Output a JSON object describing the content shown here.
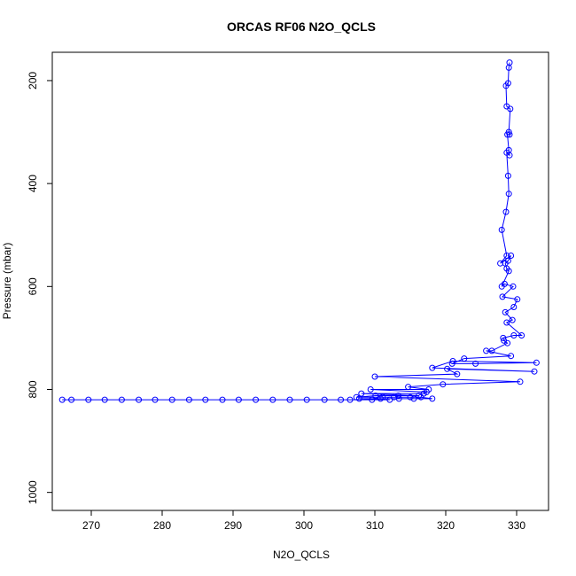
{
  "chart_data": {
    "type": "scatter",
    "title": "ORCAS RF06 N2O_QCLS",
    "xlabel": "N2O_QCLS",
    "ylabel": "Pressure (mbar)",
    "xlim": [
      264.5,
      334.5
    ],
    "ylim": [
      1035,
      145
    ],
    "y_reversed": true,
    "x_ticks": [
      270,
      280,
      290,
      300,
      310,
      320,
      330
    ],
    "y_ticks": [
      200,
      400,
      600,
      800,
      1000
    ],
    "grid": false,
    "series_color": "#0000ff",
    "series": [
      {
        "x": [
          329.0,
          328.9,
          328.8,
          328.5,
          328.6,
          329.1,
          328.9,
          329.0,
          328.7,
          328.9,
          329.0,
          328.6,
          328.8,
          328.9,
          328.5,
          327.9,
          328.6,
          327.7,
          329.2,
          328.8,
          328.4,
          328.6,
          328.9,
          327.9,
          328.3,
          329.5,
          328.0,
          330.1,
          329.6,
          328.4,
          329.4,
          328.6,
          330.7,
          329.6,
          328.1,
          328.2,
          328.7,
          326.5,
          325.7,
          329.2,
          322.6,
          320.9,
          324.2,
          332.8,
          321.0,
          318.1,
          332.5,
          320.2,
          321.6,
          310.0,
          330.5,
          319.6,
          314.7,
          317.6,
          309.4,
          317.3,
          316.9,
          308.1,
          316.2,
          313.3,
          310.1,
          307.4,
          312.7,
          315.0,
          311.1,
          316.5,
          318.1,
          315.5,
          313.4,
          310.8,
          307.8,
          312.1,
          306.5,
          309.6,
          305.2,
          302.9,
          300.4,
          298.0,
          295.6,
          293.2,
          290.8,
          288.5,
          286.1,
          283.8,
          281.4,
          279.0,
          276.7,
          274.3,
          271.9,
          269.6,
          267.2,
          265.9
        ],
        "y": [
          165,
          175,
          205,
          210,
          250,
          255,
          300,
          305,
          305,
          335,
          345,
          340,
          385,
          420,
          455,
          490,
          540,
          555,
          540,
          550,
          555,
          565,
          570,
          600,
          595,
          600,
          620,
          625,
          640,
          650,
          665,
          670,
          695,
          695,
          700,
          705,
          710,
          725,
          725,
          735,
          740,
          750,
          750,
          748,
          745,
          758,
          765,
          760,
          770,
          775,
          785,
          790,
          795,
          800,
          800,
          805,
          808,
          808,
          812,
          812,
          812,
          815,
          815,
          815,
          815,
          815,
          818,
          818,
          818,
          818,
          818,
          820,
          820,
          820,
          820,
          820,
          820,
          820,
          820,
          820,
          820,
          820,
          820,
          820,
          820,
          820,
          820,
          820,
          820,
          820,
          820,
          820
        ]
      }
    ]
  }
}
